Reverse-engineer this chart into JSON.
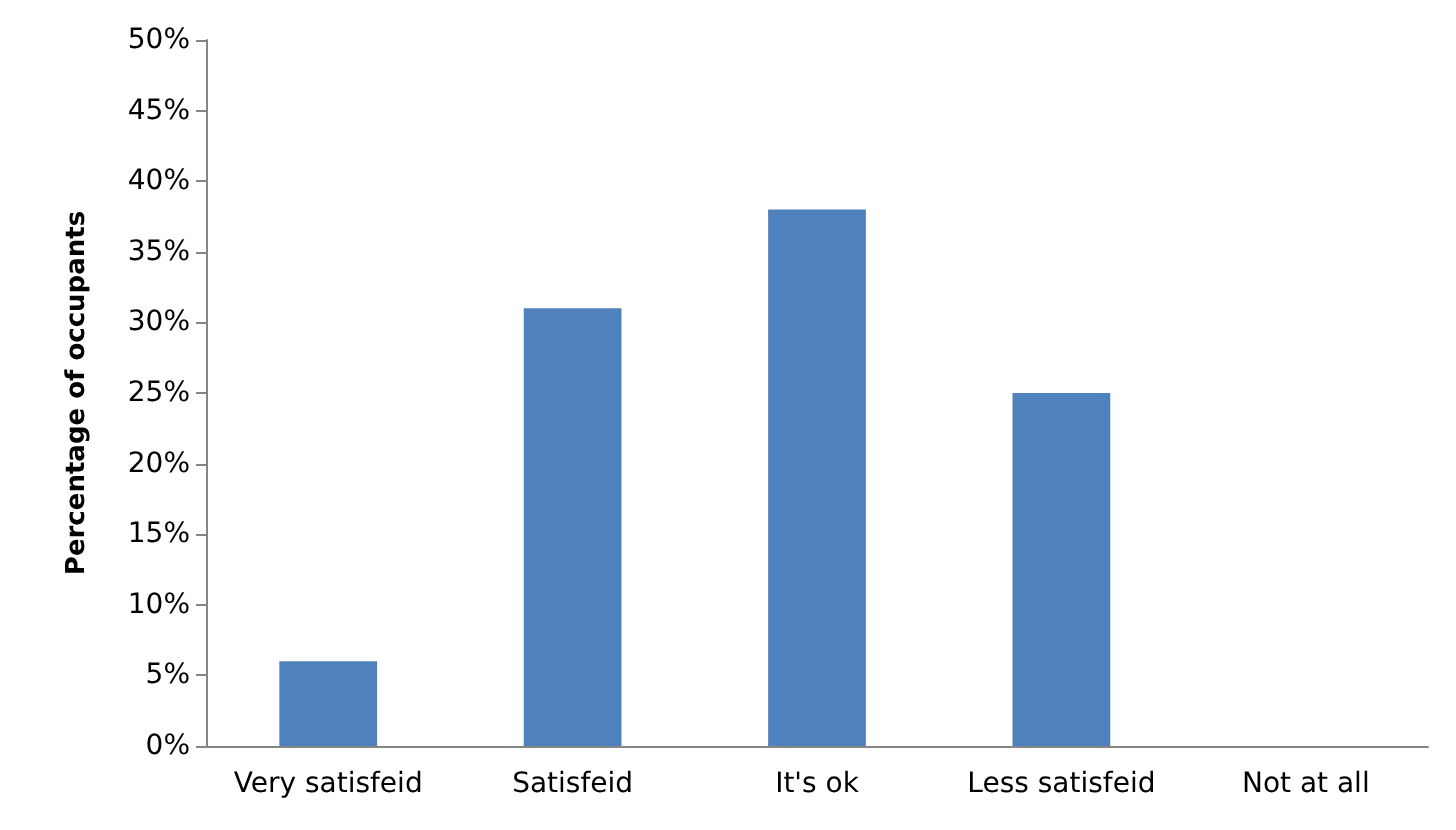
{
  "chart_data": {
    "type": "bar",
    "ylabel": "Percentage of occupants",
    "categories": [
      "Very satisfeid",
      "Satisfeid",
      "It's ok",
      "Less satisfeid",
      "Not at all"
    ],
    "values": [
      6,
      31,
      38,
      25,
      0
    ],
    "color": "#4f81bd",
    "ylim": [
      0,
      50
    ],
    "yticks": [
      {
        "value": 0,
        "label": "0%"
      },
      {
        "value": 5,
        "label": "5%"
      },
      {
        "value": 10,
        "label": "10%"
      },
      {
        "value": 15,
        "label": "15%"
      },
      {
        "value": 20,
        "label": "20%"
      },
      {
        "value": 25,
        "label": "25%"
      },
      {
        "value": 30,
        "label": "30%"
      },
      {
        "value": 35,
        "label": "35%"
      },
      {
        "value": 40,
        "label": "40%"
      },
      {
        "value": 45,
        "label": "45%"
      },
      {
        "value": 50,
        "label": "50%"
      }
    ],
    "grid": false
  }
}
